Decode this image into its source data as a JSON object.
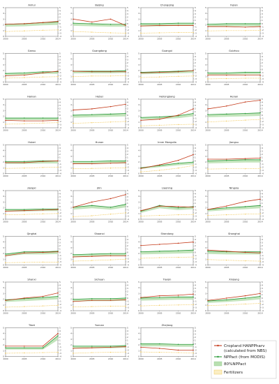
{
  "chart_data": {
    "type": "line",
    "shared": {
      "x": [
        2000,
        2005,
        2010,
        2014
      ],
      "x_ticks": [
        "2000",
        "2005",
        "2010",
        "2014"
      ],
      "left_ylim": [
        0,
        5
      ],
      "left_ticks": [
        "0",
        "1",
        "2",
        "3",
        "4",
        "5"
      ],
      "right_ylim": [
        -4,
        5
      ],
      "right_ticks": [
        "-4",
        "-3",
        "-2",
        "-1",
        "0",
        "1",
        "2",
        "3",
        "4",
        "5"
      ],
      "grid": false,
      "legend_placement": "bottom-right",
      "series_names": {
        "hanpp": "Cropland HANPPharv\n(calculated from NBS)",
        "npp": "NPPact (from MODIS)",
        "band": "80%NPPact",
        "fert": "Fertilizers"
      },
      "series_colors": {
        "hanpp": "#c43a1a",
        "npp": "#2a9a3a",
        "band": "#b8dfb0",
        "fert": "#f0c040"
      }
    },
    "panels": [
      {
        "title": "Anhui",
        "hanpp": [
          2.1,
          2.2,
          2.4,
          2.6
        ],
        "npp": [
          2.1,
          2.2,
          2.4,
          2.5
        ],
        "fert": [
          -2.5,
          -2.3,
          -2.1,
          -2.0
        ]
      },
      {
        "title": "Beijing",
        "hanpp": [
          3.0,
          2.5,
          3.0,
          1.9
        ],
        "npp": [
          2.3,
          2.2,
          2.1,
          2.1
        ],
        "fert": [
          -2.5,
          -2.7,
          -2.9,
          -3.0
        ]
      },
      {
        "title": "Chongqing",
        "hanpp": [
          1.8,
          1.9,
          1.9,
          1.9
        ],
        "npp": [
          2.2,
          2.2,
          2.3,
          2.3
        ],
        "fert": [
          -3.0,
          -2.9,
          -2.8,
          -2.8
        ]
      },
      {
        "title": "Fujian",
        "hanpp": [
          1.7,
          1.7,
          1.6,
          1.7
        ],
        "npp": [
          2.1,
          2.2,
          2.2,
          2.2
        ],
        "fert": [
          -2.3,
          -2.2,
          -2.2,
          -2.1
        ]
      },
      {
        "title": "Gansu",
        "hanpp": [
          1.1,
          1.2,
          1.6,
          1.9
        ],
        "npp": [
          1.5,
          1.6,
          1.8,
          1.8
        ],
        "fert": [
          -2.8,
          -2.6,
          -2.4,
          -2.3
        ]
      },
      {
        "title": "Guangdong",
        "hanpp": [
          1.9,
          1.8,
          1.8,
          1.8
        ],
        "npp": [
          1.9,
          1.9,
          1.9,
          2.0
        ],
        "fert": [
          -2.3,
          -2.1,
          -2.1,
          -2.0
        ]
      },
      {
        "title": "Guangxi",
        "hanpp": [
          1.6,
          1.7,
          1.8,
          2.0
        ],
        "npp": [
          1.7,
          1.8,
          1.9,
          2.0
        ],
        "fert": [
          -2.6,
          -2.4,
          -2.2,
          -2.1
        ]
      },
      {
        "title": "Guizhou",
        "hanpp": [
          1.2,
          1.2,
          1.2,
          1.2
        ],
        "npp": [
          1.6,
          1.6,
          1.7,
          1.7
        ],
        "fert": [
          -3.0,
          -2.9,
          -2.8,
          -2.8
        ]
      },
      {
        "title": "Hainan",
        "hanpp": [
          1.3,
          1.2,
          1.2,
          1.3
        ],
        "npp": [
          1.7,
          1.7,
          1.7,
          1.7
        ],
        "fert": [
          -2.9,
          -2.7,
          -2.5,
          -2.4
        ]
      },
      {
        "title": "Hebei",
        "hanpp": [
          3.1,
          3.3,
          3.7,
          4.1
        ],
        "npp": [
          2.2,
          2.3,
          2.4,
          2.5
        ],
        "fert": [
          -2.6,
          -2.4,
          -2.2,
          -2.0
        ]
      },
      {
        "title": "Heilongjiang",
        "hanpp": [
          1.3,
          1.5,
          2.2,
          3.3
        ],
        "npp": [
          1.8,
          1.9,
          2.1,
          2.5
        ],
        "fert": [
          -3.4,
          -3.2,
          -3.0,
          -2.9
        ]
      },
      {
        "title": "Henan",
        "hanpp": [
          3.3,
          3.8,
          4.5,
          4.8
        ],
        "npp": [
          2.3,
          2.4,
          2.5,
          2.6
        ],
        "fert": [
          -2.2,
          -1.9,
          -1.6,
          -1.4
        ]
      },
      {
        "title": "Hubei",
        "hanpp": [
          1.9,
          1.9,
          2.1,
          2.2
        ],
        "npp": [
          2.1,
          2.1,
          2.2,
          2.2
        ],
        "fert": [
          -2.4,
          -2.3,
          -2.1,
          -2.0
        ]
      },
      {
        "title": "Hunan",
        "hanpp": [
          1.7,
          1.7,
          1.8,
          1.9
        ],
        "npp": [
          2.1,
          2.1,
          2.2,
          2.2
        ],
        "fert": [
          -2.5,
          -2.4,
          -2.3,
          -2.2
        ]
      },
      {
        "title": "Inner Mongolia",
        "hanpp": [
          0.9,
          1.5,
          2.3,
          3.3
        ],
        "npp": [
          1.0,
          1.4,
          1.8,
          2.0
        ],
        "fert": [
          -3.5,
          -3.0,
          -2.3,
          -1.5
        ]
      },
      {
        "title": "Jiangsu",
        "hanpp": [
          2.5,
          2.5,
          2.6,
          2.7
        ],
        "npp": [
          2.2,
          2.3,
          2.4,
          2.4
        ],
        "fert": [
          -2.6,
          -2.5,
          -2.5,
          -2.4
        ]
      },
      {
        "title": "Jiangxi",
        "hanpp": [
          1.4,
          1.5,
          1.6,
          1.7
        ],
        "npp": [
          1.7,
          1.7,
          1.8,
          1.8
        ],
        "fert": [
          -2.6,
          -2.5,
          -2.3,
          -2.2
        ]
      },
      {
        "title": "Jilin",
        "hanpp": [
          2.1,
          3.0,
          3.6,
          4.3
        ],
        "npp": [
          2.1,
          2.4,
          2.1,
          2.6
        ],
        "fert": [
          -3.2,
          -2.9,
          -2.4,
          -2.0
        ]
      },
      {
        "title": "Liaoning",
        "hanpp": [
          1.5,
          2.3,
          2.2,
          2.1
        ],
        "npp": [
          1.4,
          2.4,
          2.0,
          2.2
        ],
        "fert": [
          -3.0,
          -2.8,
          -2.6,
          -2.5
        ]
      },
      {
        "title": "Ningxia",
        "hanpp": [
          1.7,
          2.3,
          3.1,
          3.5
        ],
        "npp": [
          1.7,
          2.0,
          2.2,
          2.4
        ],
        "fert": [
          -2.8,
          -2.6,
          -2.4,
          -2.3
        ]
      },
      {
        "title": "Qinghai",
        "hanpp": [
          1.6,
          2.1,
          2.2,
          2.3
        ],
        "npp": [
          1.9,
          2.3,
          2.3,
          2.4
        ],
        "fert": [
          -3.3,
          -3.2,
          -3.1,
          -3.1
        ]
      },
      {
        "title": "Shaanxi",
        "hanpp": [
          1.4,
          1.5,
          1.6,
          1.6
        ],
        "npp": [
          1.8,
          1.9,
          2.0,
          2.0
        ],
        "fert": [
          -2.8,
          -2.6,
          -2.4,
          -2.2
        ]
      },
      {
        "title": "Shandong",
        "hanpp": [
          3.4,
          3.6,
          3.8,
          4.0
        ],
        "npp": [
          2.3,
          2.4,
          2.5,
          2.6
        ],
        "fert": [
          -1.9,
          -1.7,
          -1.6,
          -1.5
        ]
      },
      {
        "title": "Shanghai",
        "hanpp": [
          2.6,
          2.4,
          2.2,
          2.1
        ],
        "npp": [
          2.4,
          2.3,
          2.3,
          2.3
        ],
        "fert": [
          -2.3,
          -2.5,
          -2.7,
          -2.8
        ]
      },
      {
        "title": "Shanxi",
        "hanpp": [
          1.8,
          2.2,
          2.5,
          3.1
        ],
        "npp": [
          1.9,
          2.1,
          2.3,
          2.5
        ],
        "fert": [
          -2.9,
          -2.7,
          -2.5,
          -2.3
        ]
      },
      {
        "title": "Sichuan",
        "hanpp": [
          1.6,
          1.8,
          1.8,
          1.9
        ],
        "npp": [
          2.0,
          2.1,
          2.1,
          2.2
        ],
        "fert": [
          -2.8,
          -2.7,
          -2.6,
          -2.6
        ]
      },
      {
        "title": "Tianjin",
        "hanpp": [
          2.3,
          2.6,
          2.7,
          2.9
        ],
        "npp": [
          2.2,
          2.3,
          2.4,
          2.4
        ],
        "fert": [
          -2.5,
          -2.3,
          -2.2,
          -2.1
        ]
      },
      {
        "title": "Xinjiang",
        "hanpp": [
          1.8,
          2.2,
          2.6,
          3.0
        ],
        "npp": [
          1.7,
          1.9,
          2.2,
          2.5
        ],
        "fert": [
          -2.4,
          -2.2,
          -1.9,
          -1.7
        ]
      },
      {
        "title": "Tibet",
        "hanpp": [
          1.8,
          1.8,
          1.8,
          4.0
        ],
        "npp": [
          1.5,
          1.5,
          1.5,
          3.6
        ],
        "fert": [
          -3.0,
          -2.9,
          -2.8,
          -2.7
        ]
      },
      {
        "title": "Yunnan",
        "hanpp": [
          1.4,
          1.5,
          1.6,
          1.7
        ],
        "npp": [
          1.8,
          1.8,
          1.8,
          1.9
        ],
        "fert": [
          -3.0,
          -2.8,
          -2.7,
          -2.6
        ]
      },
      {
        "title": "Zhejiang",
        "hanpp": [
          1.6,
          1.4,
          1.1,
          1.1
        ],
        "npp": [
          2.2,
          2.2,
          2.1,
          2.1
        ],
        "fert": [
          -2.6,
          -2.7,
          -2.8,
          -2.9
        ]
      }
    ]
  }
}
